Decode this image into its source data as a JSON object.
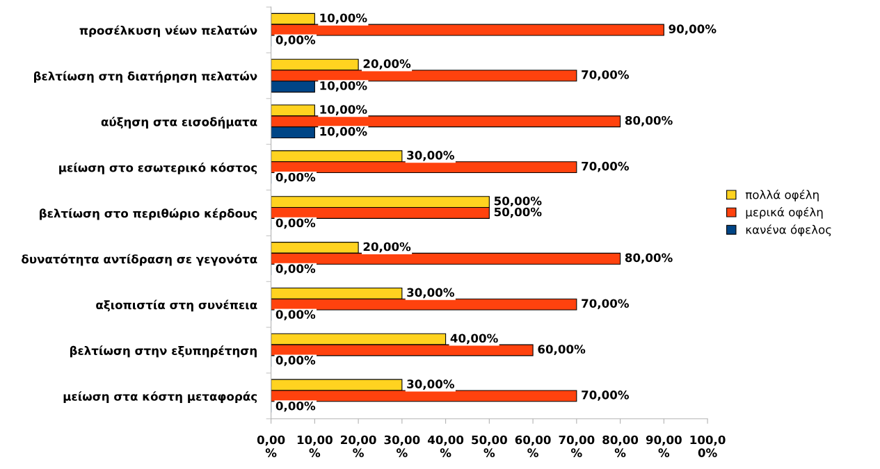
{
  "chart_data": {
    "type": "bar",
    "orientation": "horizontal",
    "categories": [
      "προσέλκυση νέων πελατών",
      "βελτίωση στη διατήρηση πελατών",
      "αύξηση στα εισοδήματα",
      "μείωση στο εσωτερικό κόστος",
      "βελτίωση στο περιθώριο κέρδους",
      "δυνατότητα αντίδραση σε γεγονότα",
      "αξιοπιστία στη συνέπεια",
      "βελτίωση στην εξυπηρέτηση",
      "μείωση στα κόστη μεταφοράς"
    ],
    "series": [
      {
        "name": "πολλά οφέλη",
        "color": "#ffd320",
        "values": [
          10,
          20,
          10,
          30,
          50,
          20,
          30,
          40,
          30
        ],
        "value_labels": [
          "10,00%",
          "20,00%",
          "10,00%",
          "30,00%",
          "50,00%",
          "20,00%",
          "30,00%",
          "40,00%",
          "30,00%"
        ]
      },
      {
        "name": "μερικά οφέλη",
        "color": "#ff420e",
        "values": [
          90,
          70,
          80,
          70,
          50,
          80,
          70,
          60,
          70
        ],
        "value_labels": [
          "90,00%",
          "70,00%",
          "80,00%",
          "70,00%",
          "50,00%",
          "80,00%",
          "70,00%",
          "60,00%",
          "70,00%"
        ]
      },
      {
        "name": "κανένα όφελος",
        "color": "#004586",
        "values": [
          0,
          10,
          10,
          0,
          0,
          0,
          0,
          0,
          0
        ],
        "value_labels": [
          "0,00%",
          "10,00%",
          "10,00%",
          "0,00%",
          "0,00%",
          "0,00%",
          "0,00%",
          "0,00%",
          "0,00%"
        ]
      }
    ],
    "xlim": [
      0,
      100
    ],
    "xticks": [
      {
        "value": 0,
        "label": "0,00\n%"
      },
      {
        "value": 10,
        "label": "10,00\n%"
      },
      {
        "value": 20,
        "label": "20,00\n%"
      },
      {
        "value": 30,
        "label": "30,00\n%"
      },
      {
        "value": 40,
        "label": "40,00\n%"
      },
      {
        "value": 50,
        "label": "50,00\n%"
      },
      {
        "value": 60,
        "label": "60,00\n%"
      },
      {
        "value": 70,
        "label": "70,00\n%"
      },
      {
        "value": 80,
        "label": "80,00\n%"
      },
      {
        "value": 90,
        "label": "90,00\n%"
      },
      {
        "value": 100,
        "label": "100,0\n0%"
      }
    ],
    "grid": false,
    "legend": "right"
  }
}
